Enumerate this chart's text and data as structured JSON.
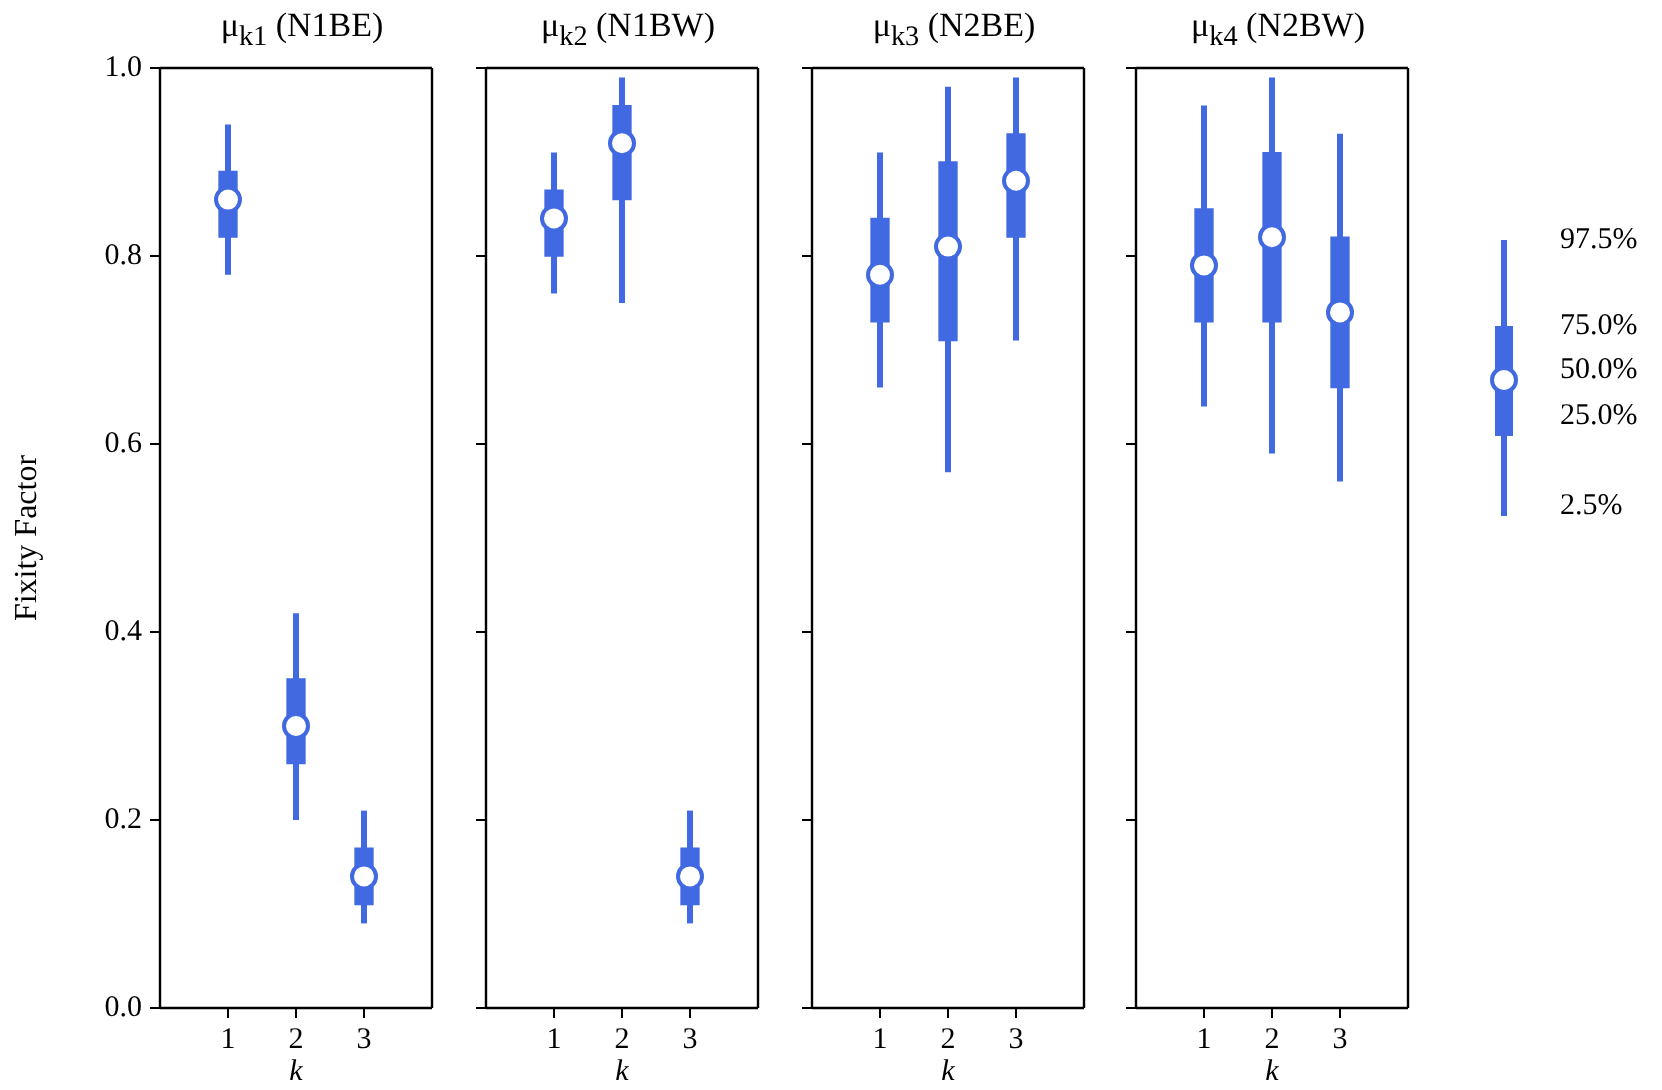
{
  "chart_data": [
    {
      "type": "box",
      "title": "μ$_{k1}$ (N1BE)",
      "xlabel": "k",
      "ylabel": "Fixity Factor",
      "categories": [
        "1",
        "2",
        "3"
      ],
      "color": "#4169e1",
      "marker": "circle",
      "ylim": [
        0,
        1
      ],
      "yticks": [
        {
          "value": 0,
          "label": "0.0"
        },
        0.2,
        0.4,
        0.6,
        0.8,
        {
          "value": 1,
          "label": "1.0"
        }
      ],
      "boxes": [
        {
          "low": 0.78,
          "q1": 0.82,
          "median": 0.86,
          "q3": 0.89,
          "high": 0.94
        },
        {
          "low": 0.2,
          "q1": 0.26,
          "median": 0.3,
          "q3": 0.35,
          "high": 0.42
        },
        {
          "low": 0.09,
          "q1": 0.11,
          "median": 0.14,
          "q3": 0.17,
          "high": 0.21
        }
      ]
    },
    {
      "type": "box",
      "title": "μ$_{k2}$ (N1BW)",
      "xlabel": "k",
      "categories": [
        "1",
        "2",
        "3"
      ],
      "color": "#4169e1",
      "marker": "circle",
      "ylim": [
        0,
        1
      ],
      "yticks": [
        0,
        0.2,
        0.4,
        0.6,
        0.8,
        1
      ],
      "tick_labels": "x",
      "boxes": [
        {
          "low": 0.76,
          "q1": 0.8,
          "median": 0.84,
          "q3": 0.87,
          "high": 0.91
        },
        {
          "low": 0.75,
          "q1": 0.86,
          "median": 0.92,
          "q3": 0.96,
          "high": 0.99
        },
        {
          "low": 0.09,
          "q1": 0.11,
          "median": 0.14,
          "q3": 0.17,
          "high": 0.21
        }
      ]
    },
    {
      "type": "box",
      "title": "μ$_{k3}$ (N2BE)",
      "xlabel": "k",
      "categories": [
        "1",
        "2",
        "3"
      ],
      "color": "#4169e1",
      "marker": "circle",
      "ylim": [
        0,
        1
      ],
      "yticks": [
        0,
        0.2,
        0.4,
        0.6,
        0.8,
        1
      ],
      "tick_labels": "x",
      "boxes": [
        {
          "low": 0.66,
          "q1": 0.73,
          "median": 0.78,
          "q3": 0.84,
          "high": 0.91
        },
        {
          "low": 0.57,
          "q1": 0.71,
          "median": 0.81,
          "q3": 0.9,
          "high": 0.98
        },
        {
          "low": 0.71,
          "q1": 0.82,
          "median": 0.88,
          "q3": 0.93,
          "high": 0.99
        }
      ]
    },
    {
      "type": "box",
      "title": "μ$_{k4}$ (N2BW)",
      "xlabel": "k",
      "categories": [
        "1",
        "2",
        "3"
      ],
      "color": "#4169e1",
      "marker": "circle",
      "ylim": [
        0,
        1
      ],
      "yticks": [
        0,
        0.2,
        0.4,
        0.6,
        0.8,
        1
      ],
      "tick_labels": "x",
      "boxes": [
        {
          "low": 0.64,
          "q1": 0.73,
          "median": 0.79,
          "q3": 0.85,
          "high": 0.96
        },
        {
          "low": 0.59,
          "q1": 0.73,
          "median": 0.82,
          "q3": 0.91,
          "high": 0.99
        },
        {
          "low": 0.56,
          "q1": 0.66,
          "median": 0.74,
          "q3": 0.82,
          "high": 0.93
        }
      ]
    },
    {
      "type": "other",
      "annotations": [
        "97.5%",
        "75.0%",
        "50.0%",
        "25.0%",
        "2.5%"
      ]
    }
  ]
}
